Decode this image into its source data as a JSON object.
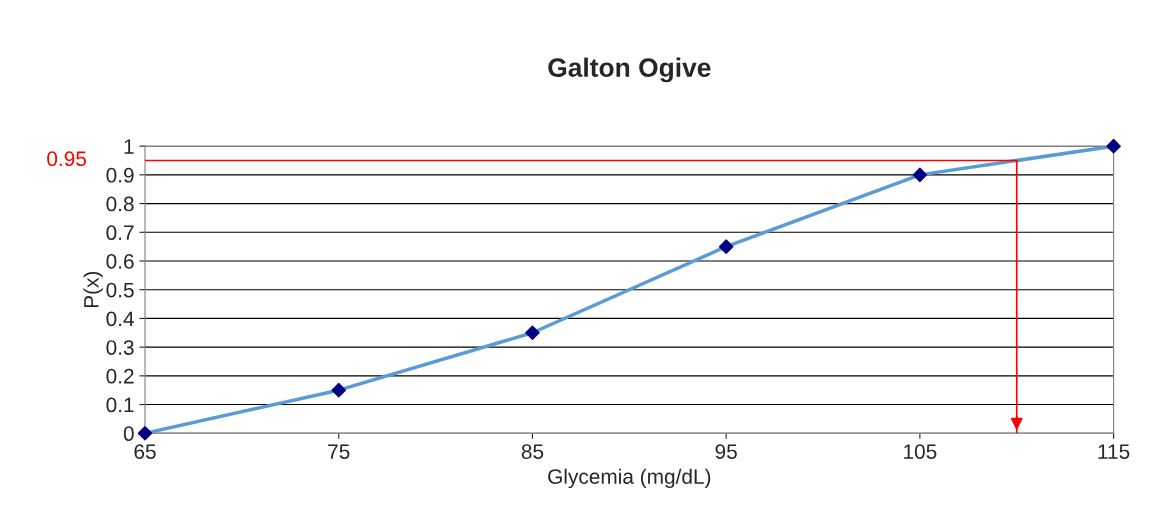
{
  "chart_data": {
    "type": "line",
    "title": "Galton Ogive",
    "xlabel": "Glycemia (mg/dL)",
    "ylabel": "P(x)",
    "x": [
      65,
      75,
      85,
      95,
      105,
      115
    ],
    "series": [
      {
        "color": "#5b9bd5",
        "colors": [
          "#000080",
          "#000080",
          "#000080",
          "#000080",
          "#000080",
          "#000080"
        ],
        "values": [
          0,
          0.15,
          0.35,
          0.65,
          0.9,
          1
        ]
      }
    ],
    "xlim": [
      65,
      115
    ],
    "xticks": [
      65,
      75,
      85,
      95,
      105,
      115
    ],
    "ylim": [
      0,
      1
    ],
    "yticks": [
      0,
      0.1,
      0.2,
      0.3,
      0.4,
      0.5,
      0.6,
      0.7,
      0.8,
      0.9,
      1
    ],
    "grid": "y",
    "marker": "diamond",
    "line_style": "solid",
    "ref_lines": [
      {
        "axis": "y",
        "value": 0.95,
        "label": "0.95",
        "color": "#ff0000"
      },
      {
        "axis": "x",
        "value": 110,
        "color": "#ff0000"
      }
    ]
  }
}
